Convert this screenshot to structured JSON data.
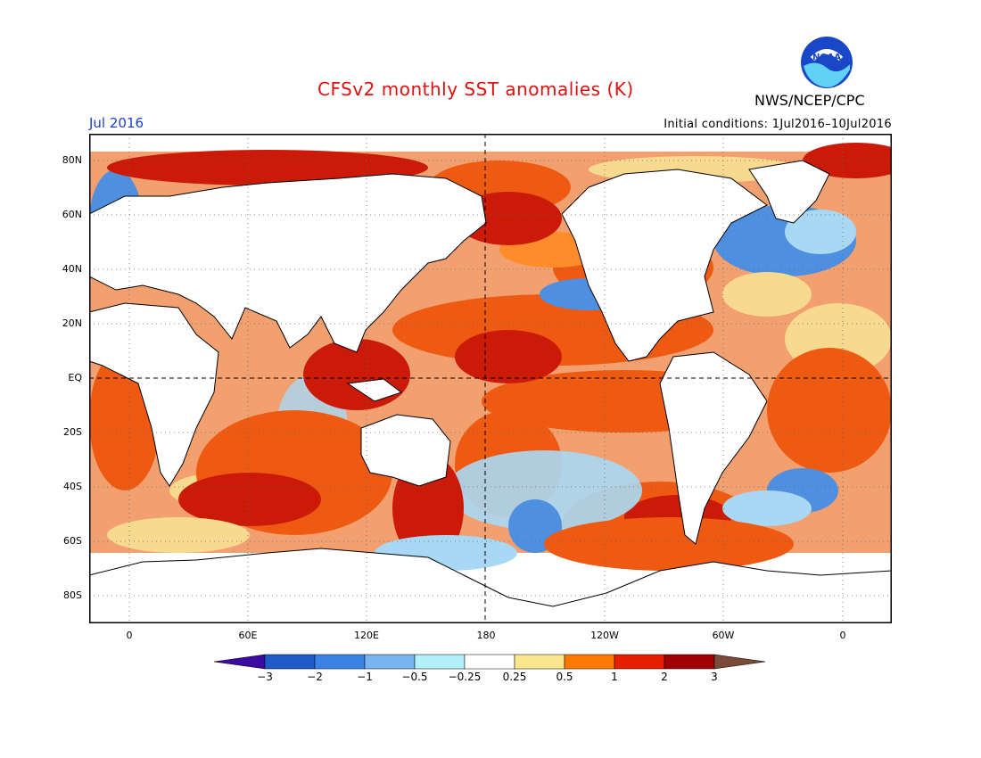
{
  "title": "CFSv2 monthly SST anomalies (K)",
  "agency": "NWS/NCEP/CPC",
  "logo_text": "NOAA",
  "month": "Jul 2016",
  "initial_conditions": "Initial conditions: 1Jul2016–10Jul2016",
  "lat_ticks": [
    "80N",
    "60N",
    "40N",
    "20N",
    "EQ",
    "20S",
    "40S",
    "60S",
    "80S"
  ],
  "lon_ticks": [
    "0",
    "60E",
    "120E",
    "180",
    "120W",
    "60W",
    "0"
  ],
  "colorbar": {
    "labels": [
      "−3",
      "−2",
      "−1",
      "−0.5",
      "−0.25",
      "0.25",
      "0.5",
      "1",
      "2",
      "3"
    ],
    "colors": [
      "#3c0aa0",
      "#1e5ac8",
      "#3c82e6",
      "#78b4f0",
      "#b4f0fa",
      "#ffffff",
      "#fae68c",
      "#ff7800",
      "#e61e00",
      "#a00000",
      "#7a4a3a"
    ]
  },
  "colors": {
    "land": "#ffffff",
    "ocean_base": "#f2a070",
    "warm": "#ee5a12",
    "warm2": "#ff8c28",
    "hot": "#cc1a08",
    "cool": "#4f8fe0",
    "coolLight": "#a8d8f4",
    "pale": "#f8d990"
  }
}
